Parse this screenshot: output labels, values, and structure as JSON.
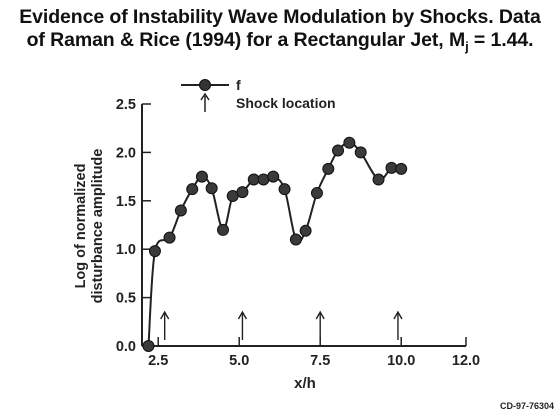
{
  "title": {
    "line1": "Evidence of Instability Wave Modulation by Shocks. Data",
    "line2": "of Raman & Rice (1994) for a Rectangular Jet, M",
    "subscript": "j",
    "line2_end": " = 1.44."
  },
  "figure_code": "CD-97-76304",
  "chart_data": {
    "type": "line",
    "xlabel": "x/h",
    "ylabel_line1": "Log of normalized",
    "ylabel_line2": "disturbance amplitude",
    "xlim": [
      2.0,
      12.0
    ],
    "ylim": [
      0.0,
      2.5
    ],
    "x_ticks": [
      2.5,
      5.0,
      7.5,
      10.0,
      12.0
    ],
    "x_tick_labels": [
      "2.5",
      "5.0",
      "7.5",
      "10.0",
      "12.0"
    ],
    "y_ticks": [
      0.0,
      0.5,
      1.0,
      1.5,
      2.0,
      2.5
    ],
    "y_tick_labels": [
      "0.0",
      "0.5",
      "1.0",
      "1.5",
      "2.0",
      "2.5"
    ],
    "grid": false,
    "legend": [
      {
        "marker": "filled-circle-line",
        "label": "f"
      },
      {
        "marker": "up-arrow",
        "label": "Shock location"
      }
    ],
    "series": [
      {
        "name": "f",
        "x": [
          2.2,
          2.4,
          2.85,
          3.2,
          3.55,
          3.85,
          4.15,
          4.5,
          4.8,
          5.1,
          5.45,
          5.75,
          6.05,
          6.4,
          6.75,
          7.05,
          7.4,
          7.75,
          8.05,
          8.4,
          8.75,
          9.3,
          9.7,
          10.0
        ],
        "y": [
          0.0,
          0.98,
          1.12,
          1.4,
          1.62,
          1.75,
          1.63,
          1.2,
          1.55,
          1.59,
          1.72,
          1.72,
          1.75,
          1.62,
          1.1,
          1.19,
          1.58,
          1.83,
          2.02,
          2.1,
          2.0,
          1.72,
          1.84,
          1.83
        ]
      }
    ],
    "shock_locations": [
      2.7,
      5.1,
      7.5,
      9.9
    ]
  }
}
